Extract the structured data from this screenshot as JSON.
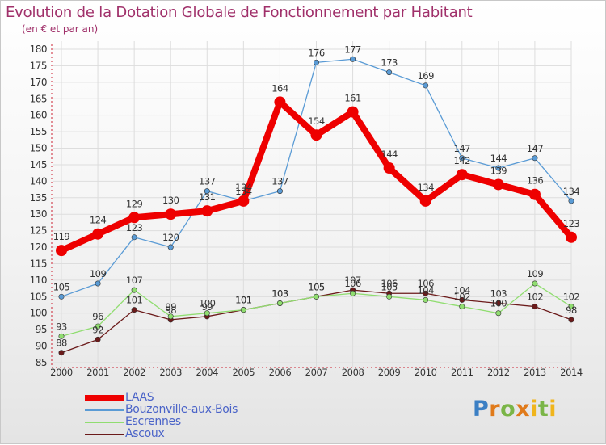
{
  "title": "Evolution de la Dotation Globale de Fonctionnement par Habitant",
  "subtitle": "(en € et par an)",
  "logo_text": "Proxiti",
  "colors": {
    "title": "#a0306a",
    "axis": "#cc2233",
    "grid": "#dddddd",
    "legend_text": "#4a63c8"
  },
  "chart_data": {
    "type": "line",
    "title": "Evolution de la Dotation Globale de Fonctionnement par Habitant",
    "subtitle": "(en € et par an)",
    "xlabel": "",
    "ylabel": "",
    "x": [
      "2000",
      "2001",
      "2002",
      "2003",
      "2004",
      "2005",
      "2006",
      "2007",
      "2008",
      "2009",
      "2010",
      "2011",
      "2012",
      "2013",
      "2014"
    ],
    "ylim": [
      85,
      180
    ],
    "yticks": [
      85,
      90,
      95,
      100,
      105,
      110,
      115,
      120,
      125,
      130,
      135,
      140,
      145,
      150,
      155,
      160,
      165,
      170,
      175,
      180
    ],
    "grid": true,
    "legend_position": "bottom-left",
    "series": [
      {
        "name": "LAAS",
        "color": "#ee0000",
        "values": [
          119,
          124,
          129,
          130,
          131,
          134,
          164,
          154,
          161,
          144,
          134,
          142,
          139,
          136,
          123
        ]
      },
      {
        "name": "Bouzonville-aux-Bois",
        "color": "#5a9bd5",
        "values": [
          105,
          109,
          123,
          120,
          137,
          134,
          137,
          176,
          177,
          173,
          169,
          147,
          144,
          147,
          134
        ]
      },
      {
        "name": "Escrennes",
        "color": "#90dd70",
        "values": [
          93,
          96,
          107,
          99,
          100,
          101,
          103,
          105,
          106,
          105,
          104,
          102,
          100,
          109,
          102
        ]
      },
      {
        "name": "Ascoux",
        "color": "#6b1a1a",
        "values": [
          88,
          92,
          101,
          98,
          99,
          101,
          103,
          105,
          107,
          106,
          106,
          104,
          103,
          102,
          98
        ]
      }
    ]
  }
}
